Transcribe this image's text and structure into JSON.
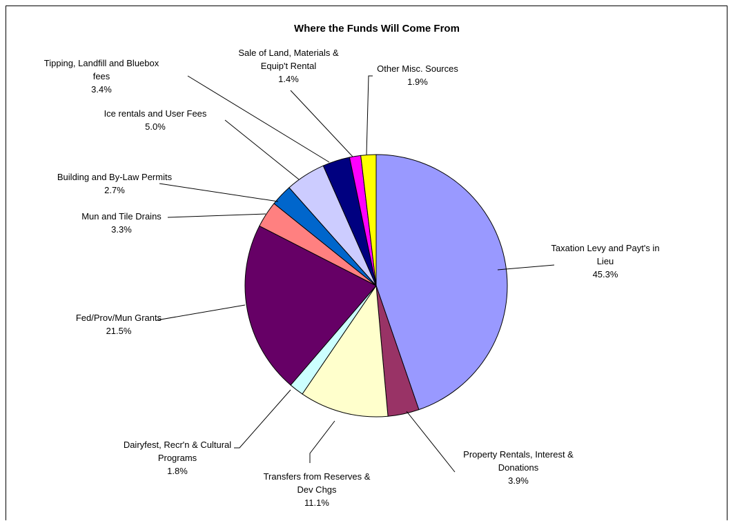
{
  "chart_data": {
    "type": "pie",
    "title": "Where the Funds Will Come From",
    "slices": [
      {
        "label": "Taxation Levy and Payt's in Lieu",
        "value": 45.3,
        "value_label": "45.3%",
        "color": "#9999ff"
      },
      {
        "label": "Property Rentals, Interest & Donations",
        "value": 3.9,
        "value_label": "3.9%",
        "color": "#993366"
      },
      {
        "label": "Transfers from Reserves & Dev Chgs",
        "value": 11.1,
        "value_label": "11.1%",
        "color": "#ffffcc"
      },
      {
        "label": "Dairyfest, Recr'n & Cultural Programs",
        "value": 1.8,
        "value_label": "1.8%",
        "color": "#ccffff"
      },
      {
        "label": "Fed/Prov/Mun Grants",
        "value": 21.5,
        "value_label": "21.5%",
        "color": "#660066"
      },
      {
        "label": "Mun and Tile Drains",
        "value": 3.3,
        "value_label": "3.3%",
        "color": "#ff8080"
      },
      {
        "label": "Building and By-Law Permits",
        "value": 2.7,
        "value_label": "2.7%",
        "color": "#0066cc"
      },
      {
        "label": "Ice rentals and User Fees",
        "value": 5.0,
        "value_label": "5.0%",
        "color": "#ccccff"
      },
      {
        "label": "Tipping, Landfill and Bluebox fees",
        "value": 3.4,
        "value_label": "3.4%",
        "color": "#000080"
      },
      {
        "label": "Sale of Land, Materials & Equip't Rental",
        "value": 1.4,
        "value_label": "1.4%",
        "color": "#ff00ff"
      },
      {
        "label": "Other Misc. Sources",
        "value": 1.9,
        "value_label": "1.9%",
        "color": "#ffff00"
      }
    ]
  }
}
